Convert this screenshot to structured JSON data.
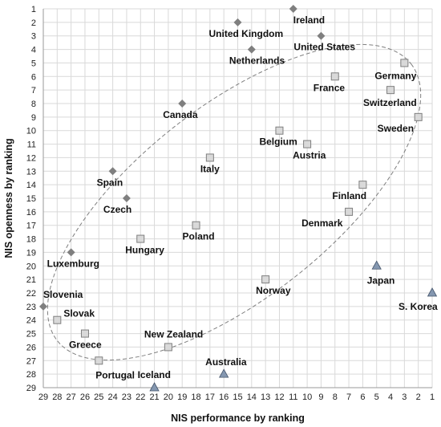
{
  "chart_data": {
    "type": "scatter",
    "title": "",
    "xlabel": "NIS performance by ranking",
    "ylabel": "NIS openness by ranking",
    "xlim": [
      29,
      1
    ],
    "ylim": [
      1,
      29
    ],
    "x_reversed": true,
    "y_reversed": true,
    "grid": "on",
    "x_ticks": [
      29,
      28,
      27,
      26,
      25,
      24,
      23,
      22,
      21,
      20,
      19,
      18,
      17,
      16,
      15,
      14,
      13,
      12,
      11,
      10,
      9,
      8,
      7,
      6,
      5,
      4,
      3,
      2,
      1
    ],
    "y_ticks": [
      1,
      2,
      3,
      4,
      5,
      6,
      7,
      8,
      9,
      10,
      11,
      12,
      13,
      14,
      15,
      16,
      17,
      18,
      19,
      20,
      21,
      22,
      23,
      24,
      25,
      26,
      27,
      28,
      29
    ],
    "colors": {
      "diamond": "#7f7f7f",
      "square_fill": "#d9d9d9",
      "square_stroke": "#7f7f7f",
      "triangle": "#8497b0",
      "triangle_stroke": "#44546a",
      "grid": "#d9d9d9",
      "ellipse": "#7f7f7f"
    },
    "series": [
      {
        "marker": "diamond",
        "points": [
          {
            "label": "Ireland",
            "x": 11,
            "y": 1
          },
          {
            "label": "United Kingdom",
            "x": 15,
            "y": 2
          },
          {
            "label": "United States",
            "x": 9,
            "y": 3
          },
          {
            "label": "Netherlands",
            "x": 14,
            "y": 4
          },
          {
            "label": "Canada",
            "x": 19,
            "y": 8
          },
          {
            "label": "Spain",
            "x": 24,
            "y": 13
          },
          {
            "label": "Czech",
            "x": 23,
            "y": 15
          },
          {
            "label": "Luxemburg",
            "x": 27,
            "y": 19
          },
          {
            "label": "Slovenia",
            "x": 29,
            "y": 23
          }
        ]
      },
      {
        "marker": "square",
        "points": [
          {
            "label": "Germany",
            "x": 3,
            "y": 5
          },
          {
            "label": "France",
            "x": 8,
            "y": 6
          },
          {
            "label": "Switzerland",
            "x": 4,
            "y": 7
          },
          {
            "label": "Sweden",
            "x": 2,
            "y": 9
          },
          {
            "label": "Belgium",
            "x": 12,
            "y": 10
          },
          {
            "label": "Austria",
            "x": 10,
            "y": 11
          },
          {
            "label": "Italy",
            "x": 17,
            "y": 12
          },
          {
            "label": "Finland",
            "x": 6,
            "y": 14
          },
          {
            "label": "Denmark",
            "x": 7,
            "y": 16
          },
          {
            "label": "Poland",
            "x": 18,
            "y": 17
          },
          {
            "label": "Hungary",
            "x": 22,
            "y": 18
          },
          {
            "label": "Norway",
            "x": 13,
            "y": 21
          },
          {
            "label": "Slovak",
            "x": 28,
            "y": 24
          },
          {
            "label": "Greece",
            "x": 26,
            "y": 25
          },
          {
            "label": "New Zealand",
            "x": 20,
            "y": 26
          },
          {
            "label": "Portugal",
            "x": 25,
            "y": 27
          }
        ]
      },
      {
        "marker": "triangle",
        "points": [
          {
            "label": "Japan",
            "x": 5,
            "y": 20
          },
          {
            "label": "S. Korea",
            "x": 1,
            "y": 22
          },
          {
            "label": "Australia",
            "x": 16,
            "y": 28
          },
          {
            "label": "Iceland",
            "x": 21,
            "y": 29
          }
        ]
      }
    ]
  }
}
